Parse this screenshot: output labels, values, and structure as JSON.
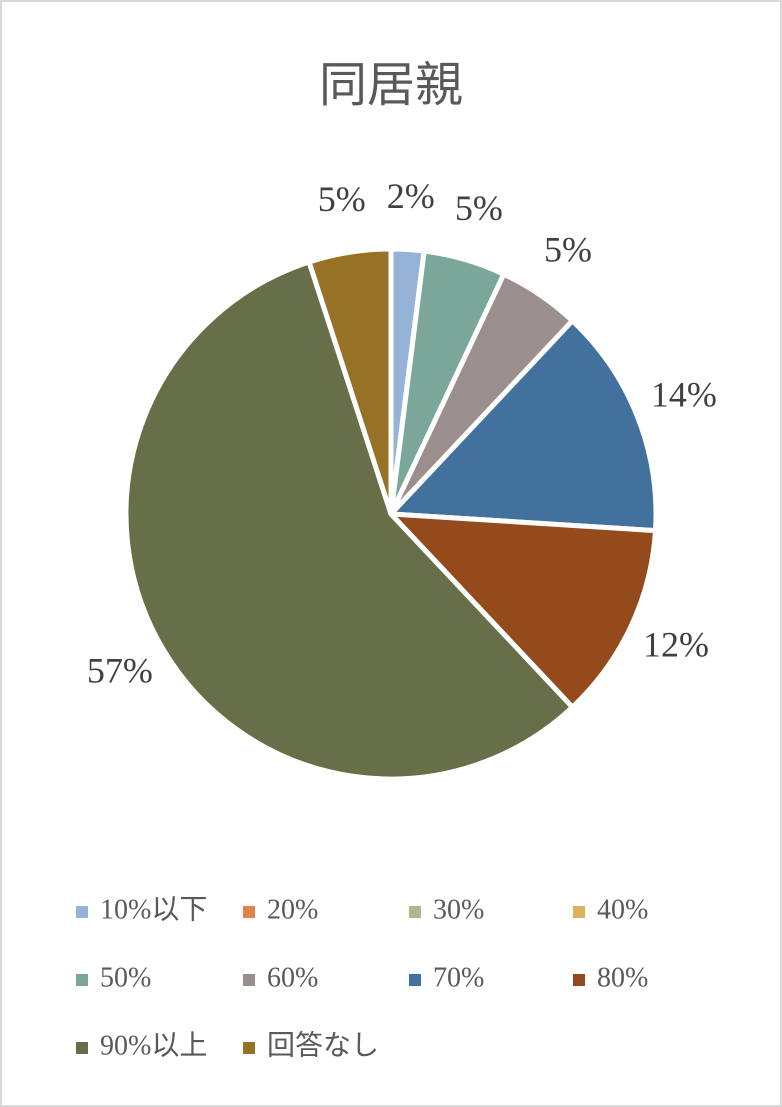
{
  "chart_data": {
    "type": "pie",
    "title": "同居親",
    "categories": [
      "10%以下",
      "20%",
      "30%",
      "40%",
      "50%",
      "60%",
      "70%",
      "80%",
      "90%以上",
      "回答なし"
    ],
    "values": [
      2,
      0,
      0,
      0,
      5,
      5,
      14,
      12,
      57,
      5
    ],
    "value_labels": [
      "2%",
      null,
      null,
      null,
      "5%",
      "5%",
      "14%",
      "12%",
      "57%",
      "5%"
    ],
    "colors": [
      "#95b3d7",
      "#e2844a",
      "#a9b98a",
      "#dcb35c",
      "#7ba79b",
      "#9a8f8d",
      "#41719c",
      "#954a1c",
      "#666f47",
      "#977226"
    ],
    "legend": "bottom"
  }
}
